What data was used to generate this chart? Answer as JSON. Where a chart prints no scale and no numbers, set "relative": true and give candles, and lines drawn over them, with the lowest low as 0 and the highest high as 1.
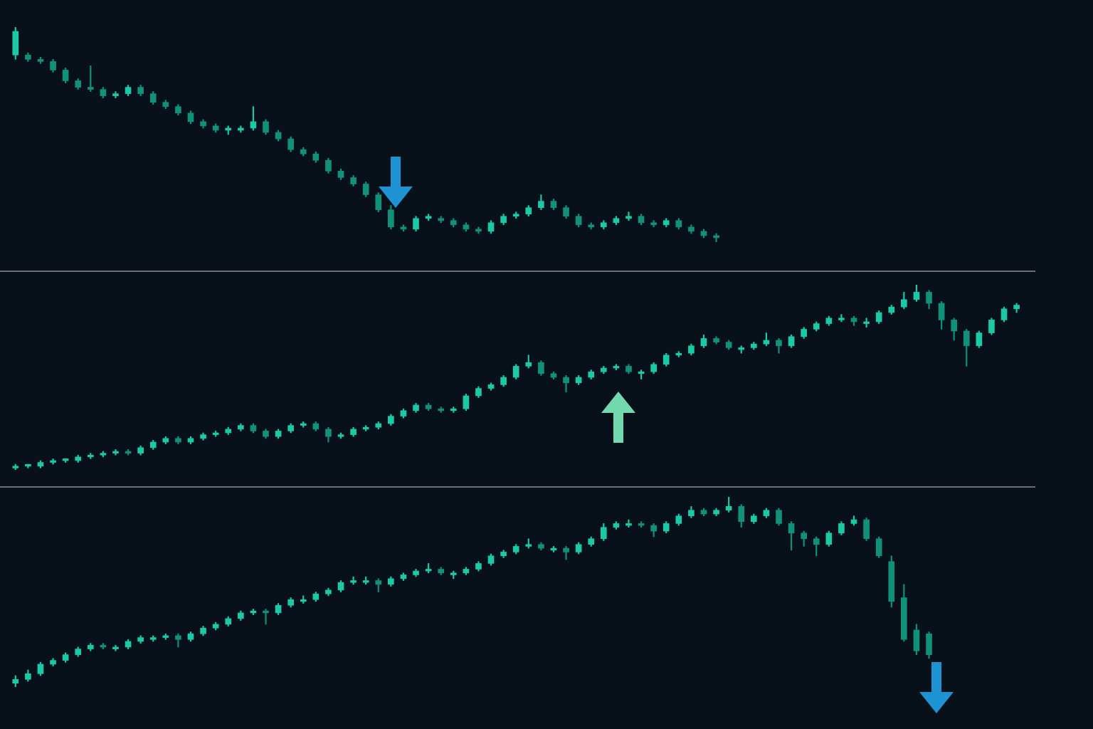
{
  "chart_data": [
    {
      "type": "candlestick",
      "relative": true,
      "colors": [
        "#1cc9a7",
        "#12917a",
        "#12917a",
        "#12917a",
        "#12917a",
        "#12917a",
        "#12917a",
        "#12917a",
        "#1cc9a7",
        "#1cc9a7",
        "#12917a",
        "#12917a",
        "#12917a",
        "#12917a",
        "#12917a",
        "#12917a",
        "#12917a",
        "#1cc9a7",
        "#1cc9a7",
        "#1cc9a7",
        "#12917a",
        "#12917a",
        "#12917a",
        "#12917a",
        "#12917a",
        "#12917a",
        "#12917a",
        "#12917a",
        "#12917a",
        "#12917a",
        "#12917a",
        "#12917a",
        "#1cc9a7",
        "#1cc9a7",
        "#12917a",
        "#12917a",
        "#12917a",
        "#12917a",
        "#1cc9a7",
        "#1cc9a7",
        "#1cc9a7",
        "#1cc9a7",
        "#1cc9a7",
        "#12917a",
        "#12917a",
        "#12917a",
        "#12917a",
        "#1cc9a7",
        "#1cc9a7",
        "#1cc9a7",
        "#12917a",
        "#12917a",
        "#1cc9a7",
        "#12917a",
        "#12917a",
        "#12917a",
        "#12917a",
        null,
        null,
        null,
        null,
        null,
        null,
        null,
        null,
        null,
        null,
        null,
        null,
        null,
        null,
        null,
        null,
        null,
        null,
        null,
        null,
        null,
        null,
        null,
        null,
        null
      ],
      "categories": [
        null,
        null,
        null,
        null,
        null,
        null,
        null,
        null,
        null,
        null,
        null,
        null,
        null,
        null,
        null,
        null,
        null,
        null,
        null,
        null,
        null,
        null,
        null,
        null,
        null,
        null,
        null,
        null,
        null,
        null,
        null,
        null,
        null,
        null,
        null,
        null,
        null,
        null,
        null,
        null,
        null,
        null,
        null,
        null,
        null,
        null,
        null,
        null,
        null,
        null,
        null,
        null,
        null,
        null,
        null,
        null,
        null,
        null,
        null,
        null,
        null,
        null,
        null,
        null,
        null,
        null,
        null,
        null,
        null,
        null,
        null,
        null,
        null,
        null,
        null,
        null,
        null,
        null,
        null,
        null,
        null,
        null
      ],
      "ohlc": [
        [
          0.87,
          1,
          0.85,
          0.98
        ],
        [
          0.87,
          0.88,
          0.84,
          0.85
        ],
        [
          0.85,
          0.86,
          0.83,
          0.84
        ],
        [
          0.84,
          0.85,
          0.79,
          0.8
        ],
        [
          0.8,
          0.81,
          0.74,
          0.75
        ],
        [
          0.75,
          0.76,
          0.71,
          0.72
        ],
        [
          0.72,
          0.82,
          0.7,
          0.71
        ],
        [
          0.71,
          0.72,
          0.67,
          0.68
        ],
        [
          0.68,
          0.7,
          0.67,
          0.69
        ],
        [
          0.69,
          0.73,
          0.68,
          0.72
        ],
        [
          0.72,
          0.73,
          0.68,
          0.69
        ],
        [
          0.69,
          0.7,
          0.64,
          0.65
        ],
        [
          0.65,
          0.66,
          0.62,
          0.63
        ],
        [
          0.63,
          0.64,
          0.59,
          0.6
        ],
        [
          0.6,
          0.61,
          0.55,
          0.56
        ],
        [
          0.56,
          0.57,
          0.53,
          0.54
        ],
        [
          0.54,
          0.55,
          0.51,
          0.52
        ],
        [
          0.52,
          0.54,
          0.5,
          0.53
        ],
        [
          0.52,
          0.54,
          0.51,
          0.53
        ],
        [
          0.53,
          0.63,
          0.52,
          0.56
        ],
        [
          0.56,
          0.57,
          0.5,
          0.51
        ],
        [
          0.51,
          0.52,
          0.47,
          0.48
        ],
        [
          0.48,
          0.49,
          0.42,
          0.43
        ],
        [
          0.43,
          0.44,
          0.4,
          0.41
        ],
        [
          0.41,
          0.42,
          0.37,
          0.38
        ],
        [
          0.38,
          0.39,
          0.32,
          0.33
        ],
        [
          0.33,
          0.34,
          0.29,
          0.3
        ],
        [
          0.3,
          0.31,
          0.26,
          0.27
        ],
        [
          0.27,
          0.28,
          0.21,
          0.22
        ],
        [
          0.22,
          0.23,
          0.14,
          0.15
        ],
        [
          0.15,
          0.17,
          0.06,
          0.07
        ],
        [
          0.07,
          0.08,
          0.05,
          0.06
        ],
        [
          0.06,
          0.12,
          0.05,
          0.11
        ],
        [
          0.11,
          0.13,
          0.1,
          0.12
        ],
        [
          0.11,
          0.12,
          0.09,
          0.1
        ],
        [
          0.1,
          0.11,
          0.07,
          0.08
        ],
        [
          0.08,
          0.09,
          0.05,
          0.06
        ],
        [
          0.06,
          0.07,
          0.04,
          0.05
        ],
        [
          0.05,
          0.1,
          0.04,
          0.09
        ],
        [
          0.09,
          0.13,
          0.08,
          0.12
        ],
        [
          0.12,
          0.14,
          0.11,
          0.13
        ],
        [
          0.13,
          0.17,
          0.12,
          0.16
        ],
        [
          0.16,
          0.22,
          0.15,
          0.19
        ],
        [
          0.19,
          0.2,
          0.15,
          0.16
        ],
        [
          0.16,
          0.17,
          0.11,
          0.12
        ],
        [
          0.12,
          0.13,
          0.07,
          0.08
        ],
        [
          0.08,
          0.09,
          0.06,
          0.07
        ],
        [
          0.07,
          0.1,
          0.06,
          0.09
        ],
        [
          0.09,
          0.12,
          0.08,
          0.11
        ],
        [
          0.11,
          0.14,
          0.1,
          0.12
        ],
        [
          0.12,
          0.13,
          0.08,
          0.09
        ],
        [
          0.09,
          0.1,
          0.07,
          0.08
        ],
        [
          0.08,
          0.11,
          0.07,
          0.1
        ],
        [
          0.1,
          0.11,
          0.06,
          0.07
        ],
        [
          0.07,
          0.08,
          0.04,
          0.05
        ],
        [
          0.05,
          0.06,
          0.02,
          0.03
        ],
        [
          0.03,
          0.04,
          0,
          0.02
        ],
        null,
        null,
        null,
        null,
        null,
        null,
        null,
        null,
        null,
        null,
        null,
        null,
        null,
        null,
        null,
        null,
        null,
        null,
        null,
        null,
        null,
        null,
        null,
        null,
        null
      ]
    },
    {
      "type": "candlestick",
      "relative": true,
      "colors": [
        "#1cc9a7",
        "#1cc9a7",
        "#1cc9a7",
        "#1cc9a7",
        "#1cc9a7",
        "#1cc9a7",
        "#1cc9a7",
        "#1cc9a7",
        "#1cc9a7",
        "#12917a",
        "#1cc9a7",
        "#1cc9a7",
        "#1cc9a7",
        "#12917a",
        "#1cc9a7",
        "#1cc9a7",
        "#1cc9a7",
        "#1cc9a7",
        "#1cc9a7",
        "#12917a",
        "#12917a",
        "#1cc9a7",
        "#1cc9a7",
        "#1cc9a7",
        "#12917a",
        "#12917a",
        "#1cc9a7",
        "#1cc9a7",
        "#1cc9a7",
        "#1cc9a7",
        "#1cc9a7",
        "#1cc9a7",
        "#1cc9a7",
        "#12917a",
        "#12917a",
        "#1cc9a7",
        "#1cc9a7",
        "#1cc9a7",
        "#1cc9a7",
        "#1cc9a7",
        "#1cc9a7",
        "#1cc9a7",
        "#12917a",
        "#12917a",
        "#12917a",
        "#1cc9a7",
        "#1cc9a7",
        "#1cc9a7",
        "#1cc9a7",
        "#12917a",
        "#1cc9a7",
        "#1cc9a7",
        "#1cc9a7",
        "#1cc9a7",
        "#1cc9a7",
        "#1cc9a7",
        "#12917a",
        "#12917a",
        "#1cc9a7",
        "#1cc9a7",
        "#1cc9a7",
        "#12917a",
        "#1cc9a7",
        "#1cc9a7",
        "#1cc9a7",
        "#1cc9a7",
        "#1cc9a7",
        "#12917a",
        "#1cc9a7",
        "#1cc9a7",
        "#1cc9a7",
        "#1cc9a7",
        "#1cc9a7",
        "#12917a",
        "#12917a",
        "#12917a",
        "#12917a",
        "#1cc9a7",
        "#1cc9a7",
        "#1cc9a7",
        "#1cc9a7",
        null
      ],
      "categories": [
        null,
        null,
        null,
        null,
        null,
        null,
        null,
        null,
        null,
        null,
        null,
        null,
        null,
        null,
        null,
        null,
        null,
        null,
        null,
        null,
        null,
        null,
        null,
        null,
        null,
        null,
        null,
        null,
        null,
        null,
        null,
        null,
        null,
        null,
        null,
        null,
        null,
        null,
        null,
        null,
        null,
        null,
        null,
        null,
        null,
        null,
        null,
        null,
        null,
        null,
        null,
        null,
        null,
        null,
        null,
        null,
        null,
        null,
        null,
        null,
        null,
        null,
        null,
        null,
        null,
        null,
        null,
        null,
        null,
        null,
        null,
        null,
        null,
        null,
        null,
        null,
        null,
        null,
        null,
        null,
        null,
        null
      ],
      "ohlc": [
        [
          0.01,
          0.03,
          0,
          0.02
        ],
        [
          0.02,
          0.03,
          0.01,
          0.03
        ],
        [
          0.02,
          0.05,
          0.01,
          0.04
        ],
        [
          0.04,
          0.06,
          0.03,
          0.05
        ],
        [
          0.05,
          0.06,
          0.04,
          0.06
        ],
        [
          0.05,
          0.08,
          0.04,
          0.07
        ],
        [
          0.07,
          0.09,
          0.06,
          0.08
        ],
        [
          0.08,
          0.1,
          0.07,
          0.09
        ],
        [
          0.09,
          0.11,
          0.08,
          0.1
        ],
        [
          0.1,
          0.11,
          0.08,
          0.09
        ],
        [
          0.09,
          0.13,
          0.08,
          0.12
        ],
        [
          0.12,
          0.16,
          0.11,
          0.15
        ],
        [
          0.15,
          0.18,
          0.14,
          0.17
        ],
        [
          0.17,
          0.18,
          0.14,
          0.15
        ],
        [
          0.15,
          0.18,
          0.14,
          0.17
        ],
        [
          0.17,
          0.2,
          0.16,
          0.19
        ],
        [
          0.19,
          0.21,
          0.18,
          0.2
        ],
        [
          0.2,
          0.23,
          0.19,
          0.22
        ],
        [
          0.22,
          0.25,
          0.21,
          0.24
        ],
        [
          0.24,
          0.25,
          0.2,
          0.21
        ],
        [
          0.21,
          0.22,
          0.17,
          0.18
        ],
        [
          0.18,
          0.22,
          0.17,
          0.21
        ],
        [
          0.21,
          0.25,
          0.2,
          0.24
        ],
        [
          0.24,
          0.26,
          0.23,
          0.25
        ],
        [
          0.25,
          0.26,
          0.21,
          0.22
        ],
        [
          0.22,
          0.23,
          0.15,
          0.18
        ],
        [
          0.18,
          0.2,
          0.17,
          0.19
        ],
        [
          0.19,
          0.23,
          0.18,
          0.22
        ],
        [
          0.22,
          0.24,
          0.21,
          0.23
        ],
        [
          0.23,
          0.26,
          0.22,
          0.25
        ],
        [
          0.25,
          0.3,
          0.24,
          0.29
        ],
        [
          0.29,
          0.33,
          0.28,
          0.32
        ],
        [
          0.32,
          0.36,
          0.31,
          0.35
        ],
        [
          0.35,
          0.36,
          0.32,
          0.33
        ],
        [
          0.33,
          0.34,
          0.31,
          0.32
        ],
        [
          0.32,
          0.34,
          0.31,
          0.33
        ],
        [
          0.33,
          0.41,
          0.32,
          0.4
        ],
        [
          0.4,
          0.45,
          0.39,
          0.44
        ],
        [
          0.44,
          0.47,
          0.43,
          0.46
        ],
        [
          0.46,
          0.51,
          0.45,
          0.5
        ],
        [
          0.5,
          0.57,
          0.49,
          0.56
        ],
        [
          0.56,
          0.62,
          0.55,
          0.58
        ],
        [
          0.58,
          0.59,
          0.51,
          0.52
        ],
        [
          0.52,
          0.53,
          0.49,
          0.5
        ],
        [
          0.5,
          0.51,
          0.42,
          0.47
        ],
        [
          0.47,
          0.51,
          0.46,
          0.5
        ],
        [
          0.5,
          0.54,
          0.49,
          0.53
        ],
        [
          0.53,
          0.56,
          0.52,
          0.55
        ],
        [
          0.55,
          0.57,
          0.54,
          0.56
        ],
        [
          0.56,
          0.57,
          0.52,
          0.53
        ],
        [
          0.52,
          0.54,
          0.49,
          0.53
        ],
        [
          0.53,
          0.58,
          0.52,
          0.57
        ],
        [
          0.57,
          0.63,
          0.56,
          0.62
        ],
        [
          0.62,
          0.64,
          0.61,
          0.63
        ],
        [
          0.63,
          0.68,
          0.62,
          0.67
        ],
        [
          0.67,
          0.73,
          0.66,
          0.71
        ],
        [
          0.71,
          0.72,
          0.68,
          0.69
        ],
        [
          0.69,
          0.7,
          0.65,
          0.66
        ],
        [
          0.65,
          0.67,
          0.63,
          0.66
        ],
        [
          0.66,
          0.69,
          0.65,
          0.68
        ],
        [
          0.68,
          0.74,
          0.67,
          0.7
        ],
        [
          0.7,
          0.71,
          0.63,
          0.67
        ],
        [
          0.67,
          0.73,
          0.66,
          0.72
        ],
        [
          0.72,
          0.77,
          0.71,
          0.76
        ],
        [
          0.76,
          0.8,
          0.75,
          0.79
        ],
        [
          0.79,
          0.83,
          0.78,
          0.82
        ],
        [
          0.81,
          0.84,
          0.8,
          0.82
        ],
        [
          0.82,
          0.83,
          0.78,
          0.8
        ],
        [
          0.79,
          0.82,
          0.77,
          0.8
        ],
        [
          0.8,
          0.86,
          0.79,
          0.85
        ],
        [
          0.85,
          0.89,
          0.84,
          0.88
        ],
        [
          0.88,
          0.96,
          0.87,
          0.92
        ],
        [
          0.92,
          1,
          0.91,
          0.96
        ],
        [
          0.96,
          0.97,
          0.87,
          0.9
        ],
        [
          0.9,
          0.91,
          0.76,
          0.81
        ],
        [
          0.81,
          0.82,
          0.7,
          0.75
        ],
        [
          0.75,
          0.76,
          0.56,
          0.67
        ],
        [
          0.67,
          0.75,
          0.66,
          0.74
        ],
        [
          0.74,
          0.82,
          0.73,
          0.81
        ],
        [
          0.81,
          0.88,
          0.8,
          0.87
        ],
        [
          0.87,
          0.9,
          0.85,
          0.89
        ],
        null
      ]
    },
    {
      "type": "candlestick",
      "relative": true,
      "colors": [
        "#1cc9a7",
        "#1cc9a7",
        "#1cc9a7",
        "#1cc9a7",
        "#1cc9a7",
        "#1cc9a7",
        "#1cc9a7",
        "#12917a",
        "#1cc9a7",
        "#1cc9a7",
        "#1cc9a7",
        "#1cc9a7",
        "#1cc9a7",
        "#12917a",
        "#1cc9a7",
        "#1cc9a7",
        "#1cc9a7",
        "#1cc9a7",
        "#1cc9a7",
        "#1cc9a7",
        "#12917a",
        "#1cc9a7",
        "#1cc9a7",
        "#1cc9a7",
        "#1cc9a7",
        "#1cc9a7",
        "#1cc9a7",
        "#1cc9a7",
        "#1cc9a7",
        "#12917a",
        "#1cc9a7",
        "#1cc9a7",
        "#1cc9a7",
        "#1cc9a7",
        "#12917a",
        "#1cc9a7",
        "#1cc9a7",
        "#1cc9a7",
        "#1cc9a7",
        "#1cc9a7",
        "#1cc9a7",
        "#1cc9a7",
        "#12917a",
        "#1cc9a7",
        "#12917a",
        "#1cc9a7",
        "#1cc9a7",
        "#1cc9a7",
        "#1cc9a7",
        "#1cc9a7",
        "#12917a",
        "#12917a",
        "#1cc9a7",
        "#1cc9a7",
        "#1cc9a7",
        "#12917a",
        "#1cc9a7",
        "#1cc9a7",
        "#12917a",
        "#1cc9a7",
        "#1cc9a7",
        "#12917a",
        "#12917a",
        "#12917a",
        "#12917a",
        "#1cc9a7",
        "#1cc9a7",
        "#1cc9a7",
        "#12917a",
        "#12917a",
        "#12917a",
        "#12917a",
        "#12917a",
        "#12917a",
        null,
        null,
        null,
        null,
        null,
        null,
        null,
        null
      ],
      "categories": [
        null,
        null,
        null,
        null,
        null,
        null,
        null,
        null,
        null,
        null,
        null,
        null,
        null,
        null,
        null,
        null,
        null,
        null,
        null,
        null,
        null,
        null,
        null,
        null,
        null,
        null,
        null,
        null,
        null,
        null,
        null,
        null,
        null,
        null,
        null,
        null,
        null,
        null,
        null,
        null,
        null,
        null,
        null,
        null,
        null,
        null,
        null,
        null,
        null,
        null,
        null,
        null,
        null,
        null,
        null,
        null,
        null,
        null,
        null,
        null,
        null,
        null,
        null,
        null,
        null,
        null,
        null,
        null,
        null,
        null,
        null,
        null,
        null,
        null,
        null,
        null,
        null,
        null,
        null,
        null,
        null,
        null
      ],
      "ohlc": [
        [
          0.02,
          0.06,
          0,
          0.04
        ],
        [
          0.04,
          0.09,
          0.03,
          0.07
        ],
        [
          0.07,
          0.13,
          0.06,
          0.12
        ],
        [
          0.12,
          0.15,
          0.11,
          0.14
        ],
        [
          0.14,
          0.18,
          0.13,
          0.17
        ],
        [
          0.17,
          0.21,
          0.16,
          0.2
        ],
        [
          0.2,
          0.23,
          0.19,
          0.22
        ],
        [
          0.22,
          0.23,
          0.2,
          0.21
        ],
        [
          0.2,
          0.22,
          0.19,
          0.21
        ],
        [
          0.21,
          0.25,
          0.2,
          0.24
        ],
        [
          0.24,
          0.27,
          0.23,
          0.26
        ],
        [
          0.25,
          0.27,
          0.24,
          0.26
        ],
        [
          0.26,
          0.28,
          0.25,
          0.27
        ],
        [
          0.27,
          0.28,
          0.21,
          0.25
        ],
        [
          0.25,
          0.29,
          0.24,
          0.28
        ],
        [
          0.28,
          0.32,
          0.27,
          0.31
        ],
        [
          0.31,
          0.34,
          0.3,
          0.33
        ],
        [
          0.33,
          0.37,
          0.32,
          0.36
        ],
        [
          0.36,
          0.4,
          0.35,
          0.39
        ],
        [
          0.39,
          0.41,
          0.38,
          0.4
        ],
        [
          0.4,
          0.41,
          0.33,
          0.39
        ],
        [
          0.39,
          0.44,
          0.38,
          0.43
        ],
        [
          0.43,
          0.47,
          0.42,
          0.46
        ],
        [
          0.45,
          0.48,
          0.44,
          0.46
        ],
        [
          0.46,
          0.5,
          0.45,
          0.49
        ],
        [
          0.49,
          0.52,
          0.48,
          0.51
        ],
        [
          0.51,
          0.56,
          0.5,
          0.55
        ],
        [
          0.55,
          0.58,
          0.54,
          0.56
        ],
        [
          0.55,
          0.58,
          0.54,
          0.56
        ],
        [
          0.56,
          0.57,
          0.5,
          0.54
        ],
        [
          0.54,
          0.58,
          0.53,
          0.57
        ],
        [
          0.57,
          0.6,
          0.56,
          0.59
        ],
        [
          0.59,
          0.62,
          0.58,
          0.61
        ],
        [
          0.61,
          0.65,
          0.6,
          0.62
        ],
        [
          0.62,
          0.63,
          0.59,
          0.6
        ],
        [
          0.59,
          0.61,
          0.57,
          0.6
        ],
        [
          0.6,
          0.63,
          0.59,
          0.62
        ],
        [
          0.62,
          0.66,
          0.61,
          0.65
        ],
        [
          0.65,
          0.7,
          0.64,
          0.69
        ],
        [
          0.69,
          0.72,
          0.68,
          0.71
        ],
        [
          0.71,
          0.75,
          0.7,
          0.74
        ],
        [
          0.74,
          0.78,
          0.73,
          0.75
        ],
        [
          0.75,
          0.76,
          0.72,
          0.73
        ],
        [
          0.72,
          0.74,
          0.71,
          0.73
        ],
        [
          0.73,
          0.74,
          0.67,
          0.71
        ],
        [
          0.71,
          0.76,
          0.7,
          0.75
        ],
        [
          0.75,
          0.79,
          0.74,
          0.78
        ],
        [
          0.78,
          0.86,
          0.77,
          0.84
        ],
        [
          0.84,
          0.87,
          0.83,
          0.86
        ],
        [
          0.85,
          0.88,
          0.84,
          0.86
        ],
        [
          0.86,
          0.87,
          0.84,
          0.85
        ],
        [
          0.85,
          0.86,
          0.79,
          0.82
        ],
        [
          0.82,
          0.87,
          0.81,
          0.86
        ],
        [
          0.86,
          0.91,
          0.85,
          0.9
        ],
        [
          0.9,
          0.95,
          0.89,
          0.93
        ],
        [
          0.93,
          0.94,
          0.9,
          0.91
        ],
        [
          0.91,
          0.94,
          0.9,
          0.93
        ],
        [
          0.93,
          1,
          0.92,
          0.95
        ],
        [
          0.95,
          0.96,
          0.84,
          0.87
        ],
        [
          0.87,
          0.91,
          0.86,
          0.9
        ],
        [
          0.9,
          0.94,
          0.89,
          0.93
        ],
        [
          0.93,
          0.94,
          0.85,
          0.86
        ],
        [
          0.86,
          0.87,
          0.72,
          0.81
        ],
        [
          0.81,
          0.82,
          0.74,
          0.78
        ],
        [
          0.78,
          0.79,
          0.69,
          0.75
        ],
        [
          0.75,
          0.82,
          0.74,
          0.81
        ],
        [
          0.81,
          0.87,
          0.8,
          0.86
        ],
        [
          0.86,
          0.9,
          0.85,
          0.88
        ],
        [
          0.88,
          0.89,
          0.77,
          0.78
        ],
        [
          0.78,
          0.79,
          0.68,
          0.69
        ],
        [
          0.66,
          0.69,
          0.42,
          0.45
        ],
        [
          0.47,
          0.54,
          0.24,
          0.25
        ],
        [
          0.3,
          0.33,
          0.17,
          0.19
        ],
        [
          0.28,
          0.29,
          0.15,
          0.17
        ],
        null,
        null,
        null,
        null,
        null,
        null,
        null,
        null
      ]
    }
  ]
}
